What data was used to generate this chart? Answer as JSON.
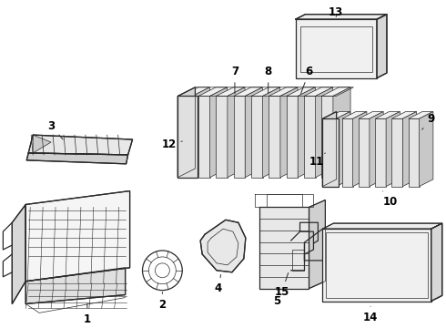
{
  "bg_color": "#ffffff",
  "line_color": "#2a2a2a",
  "label_color": "#000000",
  "label_fontsize": 8.5,
  "fig_width": 4.9,
  "fig_height": 3.6,
  "dpi": 100
}
